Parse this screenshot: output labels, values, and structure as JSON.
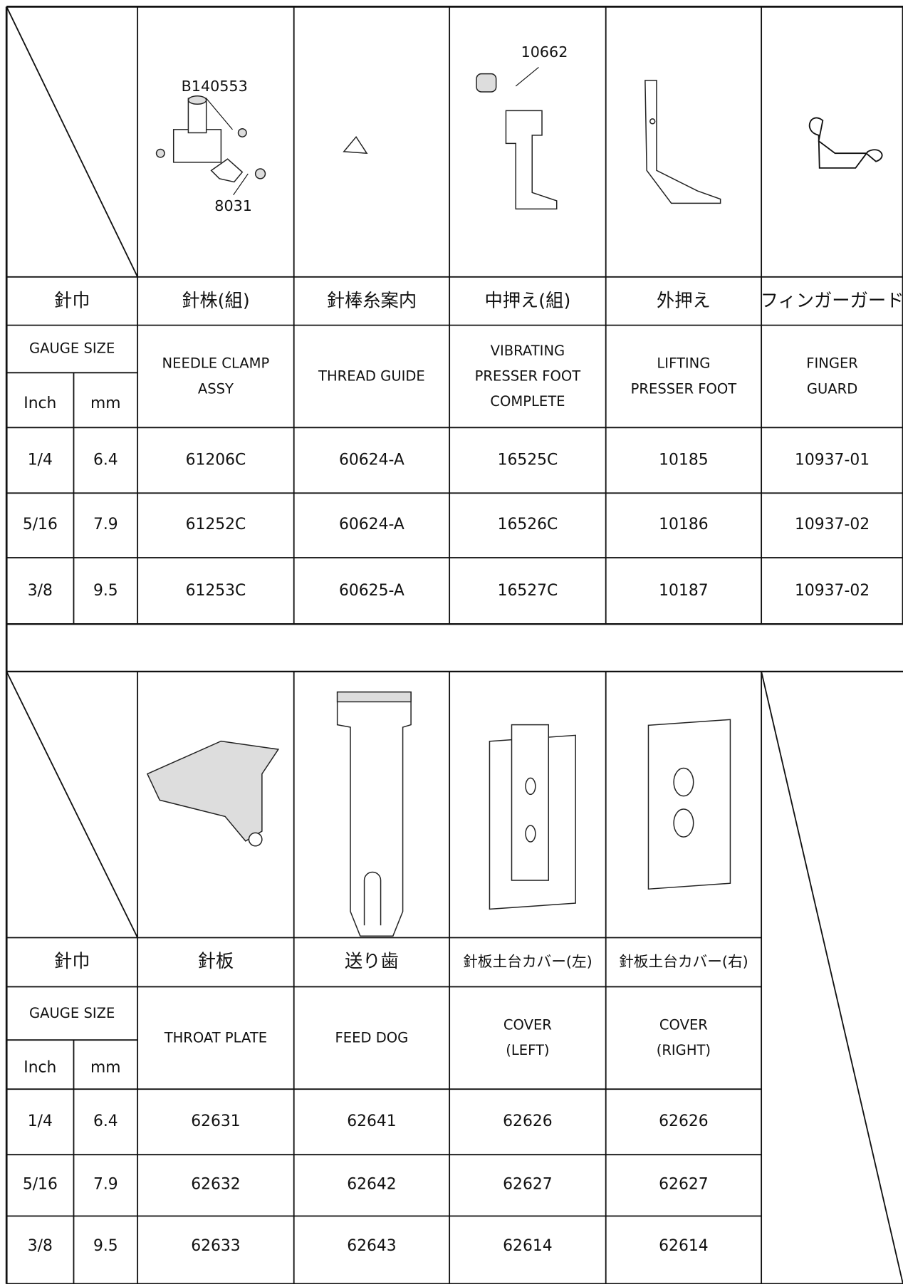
{
  "table_1": {
    "callouts": [
      "10662",
      "B140553",
      "8031"
    ],
    "gauge_header_jp": "針巾",
    "gauge_size": "GAUGE SIZE",
    "inch": "Inch",
    "mm": "mm",
    "header_jp": [
      "針株(組)",
      "針棒糸案内",
      "中押え(組)",
      "外押え",
      "フィンガーガード"
    ],
    "header_en": [
      [
        "NEEDLE CLAMP",
        "ASSY"
      ],
      [
        "THREAD GUIDE"
      ],
      [
        "VIBRATING",
        "PRESSER FOOT",
        "COMPLETE"
      ],
      [
        "LIFTING",
        "PRESSER FOOT"
      ],
      [
        "FINGER",
        "GUARD"
      ]
    ],
    "rows": [
      [
        "1/4",
        "6.4",
        "61206C",
        "60624-A",
        "16525C",
        "10185",
        "10937-01"
      ],
      [
        "5/16",
        "7.9",
        "61252C",
        "60624-A",
        "16526C",
        "10186",
        "10937-02"
      ],
      [
        "3/8",
        "9.5",
        "61253C",
        "60625-A",
        "16527C",
        "10187",
        "10937-02"
      ]
    ]
  },
  "table_2": {
    "gauge_header_jp": "針巾",
    "gauge_size": "GAUGE SIZE",
    "inch": "Inch",
    "mm": "mm",
    "header_jp": [
      "針板",
      "送り歯",
      "針板土台カバー(左)",
      "針板土台カバー(右)"
    ],
    "header_en": [
      [
        "THROAT PLATE"
      ],
      [
        "FEED DOG"
      ],
      [
        "COVER",
        "(LEFT)"
      ],
      [
        "COVER",
        "(RIGHT)"
      ]
    ],
    "rows": [
      [
        "1/4",
        "6.4",
        "62631",
        "62641",
        "62626",
        "62626"
      ],
      [
        "5/16",
        "7.9",
        "62632",
        "62642",
        "62627",
        "62627"
      ],
      [
        "3/8",
        "9.5",
        "62633",
        "62643",
        "62614",
        "62614"
      ]
    ]
  }
}
